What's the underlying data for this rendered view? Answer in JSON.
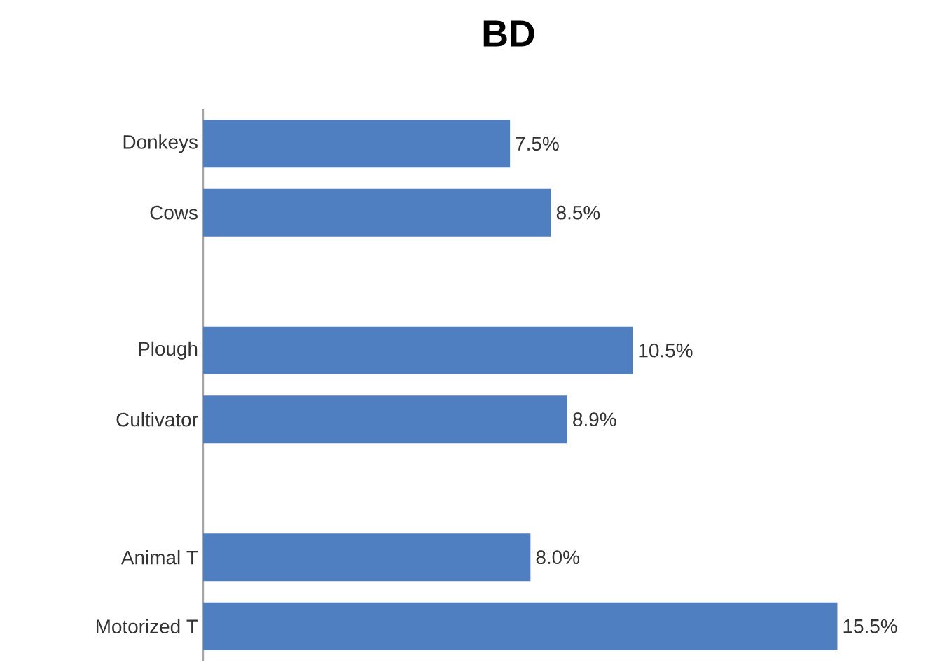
{
  "chart_data": {
    "type": "bar",
    "orientation": "horizontal",
    "title": "BD",
    "categories": [
      "Donkeys",
      "Cows",
      null,
      "Plough",
      "Cultivator",
      null,
      "Animal T",
      "Motorized T"
    ],
    "values": [
      7.5,
      8.5,
      null,
      10.5,
      8.9,
      null,
      8.0,
      15.5
    ],
    "value_labels": [
      "7.5%",
      "8.5%",
      null,
      "10.5%",
      "8.9%",
      null,
      "8.0%",
      "15.5%"
    ],
    "color": "#4f7fc0"
  }
}
